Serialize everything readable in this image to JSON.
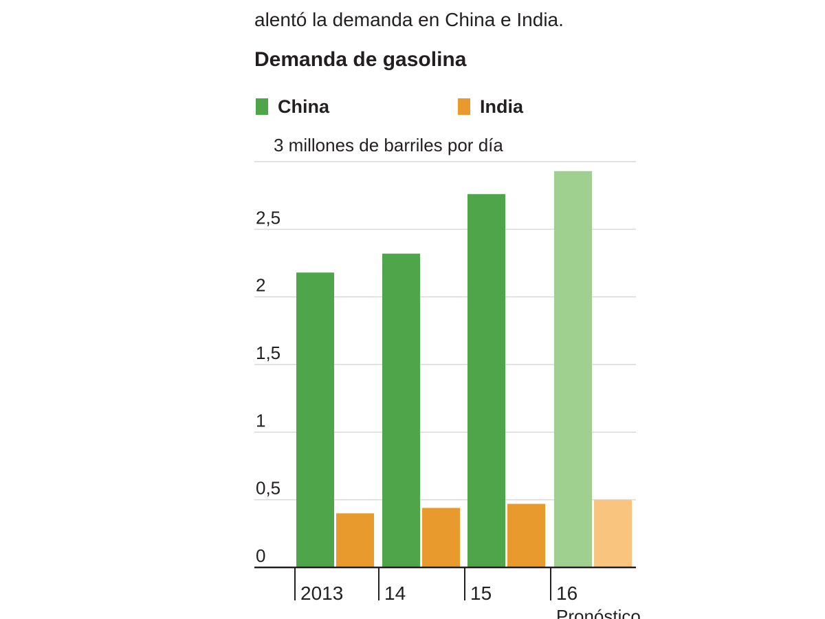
{
  "intro_text": "alentó la demanda en China e India.",
  "chart_data": {
    "type": "bar",
    "title": "Demanda de gasolina",
    "unit_label": "3 millones de barriles por día",
    "categories": [
      "2013",
      "14",
      "15",
      "16"
    ],
    "category_sublabels": [
      "",
      "",
      "",
      "Pronóstico"
    ],
    "series": [
      {
        "name": "China",
        "values": [
          2.18,
          2.32,
          2.76,
          2.93
        ],
        "color": "#4fa64a",
        "forecast_color": "#9fd08f"
      },
      {
        "name": "India",
        "values": [
          0.4,
          0.44,
          0.47,
          0.5
        ],
        "color": "#e89a2c",
        "forecast_color": "#f9c47e"
      }
    ],
    "forecast_category": "16",
    "ylim": [
      0,
      3
    ],
    "yticks": [
      0,
      0.5,
      1,
      1.5,
      2,
      2.5
    ],
    "ytick_labels": [
      "0",
      "0,5",
      "1",
      "1,5",
      "2",
      "2,5"
    ],
    "grid": true,
    "legend_position": "top"
  }
}
